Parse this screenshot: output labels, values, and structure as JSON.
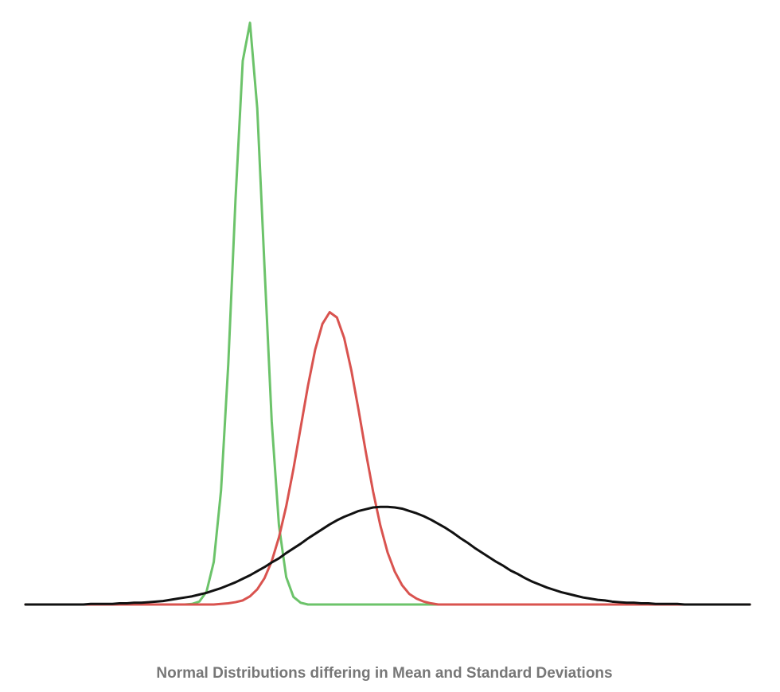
{
  "chart_data": {
    "type": "line",
    "title": "Normal Distributions differing in Mean and Standard Deviations",
    "x": [
      0,
      1,
      2,
      3,
      4,
      5,
      6,
      7,
      8,
      9,
      10,
      11,
      12,
      13,
      14,
      15,
      16,
      17,
      18,
      19,
      20,
      21,
      22,
      23,
      24,
      25,
      26,
      27,
      28,
      29,
      30,
      31,
      32,
      33,
      34,
      35,
      36,
      37,
      38,
      39,
      40,
      41,
      42,
      43,
      44,
      45,
      46,
      47,
      48,
      49,
      50,
      51,
      52,
      53,
      54,
      55,
      56,
      57,
      58,
      59,
      60,
      61,
      62,
      63,
      64,
      65,
      66,
      67,
      68,
      69,
      70,
      71,
      72,
      73,
      74,
      75,
      76,
      77,
      78,
      79,
      80,
      81,
      82,
      83,
      84,
      85,
      86,
      87,
      88,
      89,
      90,
      91,
      92,
      93,
      94,
      95,
      96,
      97,
      98,
      99,
      100
    ],
    "xlim": [
      0,
      100
    ],
    "ylim": [
      0,
      100
    ],
    "series": [
      {
        "color": "#6cc36a",
        "values": [
          0,
          0,
          0,
          0,
          0,
          0,
          0,
          0,
          0,
          0,
          0,
          0,
          0,
          0,
          0,
          0,
          0,
          0,
          0,
          0,
          0,
          0,
          0,
          0.1,
          0.5,
          2.2,
          7.3,
          19.5,
          41.1,
          69.3,
          93.0,
          99.5,
          84.9,
          57.8,
          31.3,
          13.5,
          4.7,
          1.3,
          0.3,
          0,
          0,
          0,
          0,
          0,
          0,
          0,
          0,
          0,
          0,
          0,
          0,
          0,
          0,
          0,
          0,
          0,
          0,
          0,
          0,
          0,
          0,
          0,
          0,
          0,
          0,
          0,
          0,
          0,
          0,
          0,
          0,
          0,
          0,
          0,
          0,
          0,
          0,
          0,
          0,
          0,
          0,
          0,
          0,
          0,
          0,
          0,
          0,
          0,
          0,
          0,
          0,
          0,
          0,
          0,
          0,
          0,
          0,
          0,
          0,
          0,
          0
        ]
      },
      {
        "color": "#d9534f",
        "values": [
          0,
          0,
          0,
          0,
          0,
          0,
          0,
          0,
          0,
          0,
          0,
          0,
          0,
          0,
          0,
          0,
          0,
          0,
          0,
          0,
          0,
          0,
          0,
          0,
          0,
          0,
          0,
          0.1,
          0.2,
          0.4,
          0.7,
          1.4,
          2.6,
          4.5,
          7.4,
          11.5,
          16.8,
          23.2,
          30.3,
          37.4,
          43.6,
          48.0,
          50.0,
          49.1,
          45.6,
          40.0,
          33.2,
          26.0,
          19.3,
          13.5,
          8.9,
          5.6,
          3.3,
          1.8,
          1.0,
          0.5,
          0.2,
          0,
          0,
          0,
          0,
          0,
          0,
          0,
          0,
          0,
          0,
          0,
          0,
          0,
          0,
          0,
          0,
          0,
          0,
          0,
          0,
          0,
          0,
          0,
          0,
          0,
          0,
          0,
          0,
          0,
          0,
          0,
          0,
          0,
          0,
          0,
          0,
          0,
          0,
          0,
          0,
          0,
          0,
          0,
          0
        ]
      },
      {
        "color": "#111111",
        "values": [
          0,
          0,
          0,
          0,
          0,
          0,
          0,
          0,
          0,
          0.1,
          0.1,
          0.1,
          0.1,
          0.2,
          0.2,
          0.3,
          0.3,
          0.4,
          0.5,
          0.6,
          0.8,
          1.0,
          1.2,
          1.4,
          1.7,
          2.0,
          2.4,
          2.8,
          3.3,
          3.8,
          4.4,
          5.0,
          5.7,
          6.4,
          7.2,
          7.9,
          8.8,
          9.6,
          10.4,
          11.3,
          12.1,
          12.9,
          13.7,
          14.4,
          15.0,
          15.5,
          16.0,
          16.3,
          16.6,
          16.7,
          16.7,
          16.6,
          16.4,
          16.0,
          15.6,
          15.1,
          14.5,
          13.8,
          13.1,
          12.3,
          11.4,
          10.6,
          9.7,
          8.9,
          8.1,
          7.3,
          6.6,
          5.8,
          5.2,
          4.5,
          3.9,
          3.4,
          2.9,
          2.5,
          2.1,
          1.8,
          1.5,
          1.2,
          1.0,
          0.8,
          0.7,
          0.5,
          0.4,
          0.3,
          0.3,
          0.2,
          0.2,
          0.1,
          0.1,
          0.1,
          0.1,
          0,
          0,
          0,
          0,
          0,
          0,
          0,
          0,
          0,
          0
        ]
      }
    ]
  }
}
